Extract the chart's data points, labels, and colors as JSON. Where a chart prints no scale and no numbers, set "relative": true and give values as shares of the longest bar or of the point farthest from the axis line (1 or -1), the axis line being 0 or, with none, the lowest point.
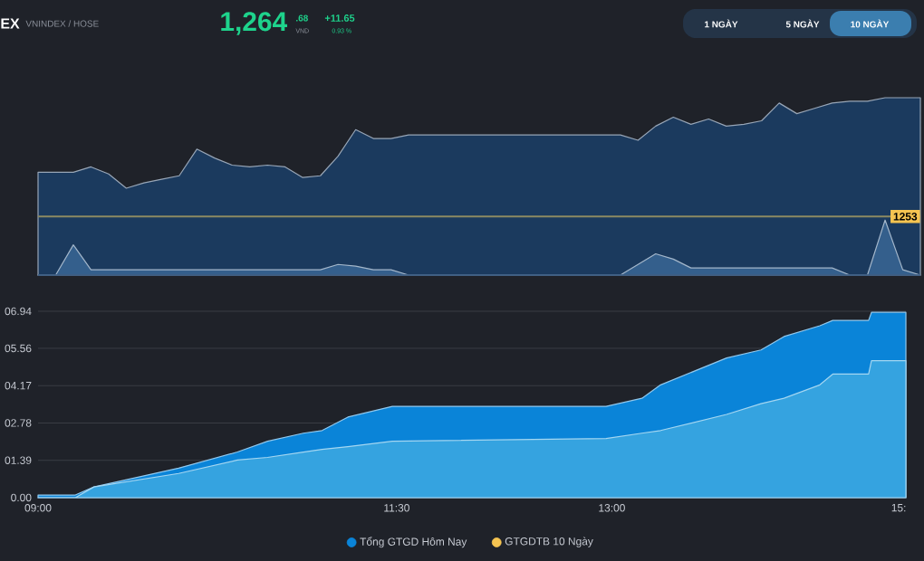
{
  "chart_data": [
    {
      "type": "other",
      "title": "EX",
      "annotations": [
        "VNINDEX / HOSE",
        "1,264",
        ".68",
        "VND",
        "+11.65",
        "0.93 %",
        "1 NGÀY",
        "5 NGÀY",
        "10 NGÀY"
      ]
    },
    {
      "type": "area",
      "relative": true,
      "categories": [
        null,
        null,
        null,
        null,
        null,
        null,
        null,
        null,
        null,
        null,
        null,
        null,
        null,
        null,
        null,
        null,
        null,
        null,
        null,
        null,
        null,
        null,
        null,
        null,
        null,
        null,
        null,
        null,
        null,
        null,
        null,
        null,
        null,
        null,
        null,
        null,
        null,
        null,
        null,
        null,
        null,
        null,
        null,
        null,
        null,
        null,
        null,
        null,
        null,
        null,
        null
      ],
      "series": [
        {
          "color": "#1b3a5e",
          "values": [
            0.58,
            0.58,
            0.58,
            0.61,
            0.57,
            0.49,
            0.52,
            0.54,
            0.56,
            0.71,
            0.66,
            0.62,
            0.61,
            0.62,
            0.61,
            0.55,
            0.56,
            0.67,
            0.82,
            0.77,
            0.77,
            0.79,
            0.79,
            0.79,
            0.79,
            0.79,
            0.79,
            0.79,
            0.79,
            0.79,
            0.79,
            0.79,
            0.79,
            0.79,
            0.76,
            0.84,
            0.89,
            0.85,
            0.88,
            0.84,
            0.85,
            0.87,
            0.97,
            0.91,
            0.94,
            0.97,
            0.98,
            0.98,
            1,
            1,
            1
          ]
        },
        {
          "color": "#345f8c",
          "values": [
            0,
            0,
            0.17,
            0.03,
            0.03,
            0.03,
            0.03,
            0.03,
            0.03,
            0.03,
            0.03,
            0.03,
            0.03,
            0.03,
            0.03,
            0.03,
            0.03,
            0.06,
            0.05,
            0.03,
            0.03,
            0,
            0,
            0,
            0,
            0,
            0,
            0,
            0,
            0,
            0,
            0,
            0,
            0,
            0.06,
            0.12,
            0.09,
            0.04,
            0.04,
            0.04,
            0.04,
            0.04,
            0.04,
            0.04,
            0.04,
            0.04,
            0,
            0,
            0.31,
            0.03,
            0
          ]
        }
      ],
      "ref_lines": [
        {
          "axis": "y",
          "value": 0.33,
          "color": "#8c8a62"
        }
      ],
      "annotations": [
        {
          "text": "1253",
          "y": 0.33
        }
      ]
    },
    {
      "type": "area",
      "grid": "y",
      "legend": "bottom",
      "xlim": [
        9,
        15.05
      ],
      "xticks": [
        {
          "value": 9,
          "label": "09:00"
        },
        {
          "value": 11.5,
          "label": "11:30"
        },
        {
          "value": 13,
          "label": "13:00"
        },
        {
          "value": 15,
          "label": "15:"
        }
      ],
      "ylim": [
        0,
        6.94
      ],
      "yticks": [
        {
          "value": 0,
          "label": "0.00"
        },
        {
          "value": 1.39,
          "label": "01.39"
        },
        {
          "value": 2.78,
          "label": "02.78"
        },
        {
          "value": 4.17,
          "label": "04.17"
        },
        {
          "value": 5.56,
          "label": "05.56"
        },
        {
          "value": 6.94,
          "label": "06.94"
        }
      ],
      "series": [
        {
          "name": "Tổng GTGD Hôm Nay",
          "color": "#0a84d8",
          "x": [
            9.0,
            9.26,
            9.39,
            9.98,
            10.39,
            10.6,
            10.85,
            10.98,
            11.16,
            11.47,
            12.96,
            13.21,
            13.34,
            13.8,
            14.04,
            14.2,
            14.45,
            14.54,
            14.79,
            14.81,
            15.05
          ],
          "values": [
            0.1,
            0.1,
            0.4,
            1.1,
            1.7,
            2.1,
            2.4,
            2.5,
            3.0,
            3.4,
            3.4,
            3.7,
            4.2,
            5.2,
            5.5,
            6.0,
            6.4,
            6.6,
            6.6,
            6.9,
            6.9
          ]
        },
        {
          "color": "#35a3e0",
          "x": [
            9.0,
            9.26,
            9.39,
            9.98,
            10.39,
            10.6,
            10.85,
            10.98,
            11.16,
            11.47,
            12.96,
            13.21,
            13.34,
            13.8,
            14.04,
            14.2,
            14.45,
            14.54,
            14.79,
            14.81,
            15.05
          ],
          "values": [
            0,
            0,
            0.4,
            0.9,
            1.4,
            1.5,
            1.7,
            1.8,
            1.9,
            2.1,
            2.2,
            2.4,
            2.5,
            3.1,
            3.5,
            3.7,
            4.2,
            4.6,
            4.6,
            5.1,
            5.1
          ]
        },
        {
          "name": "GTGDTB 10 Ngày",
          "color": "#f5c451"
        }
      ]
    }
  ]
}
